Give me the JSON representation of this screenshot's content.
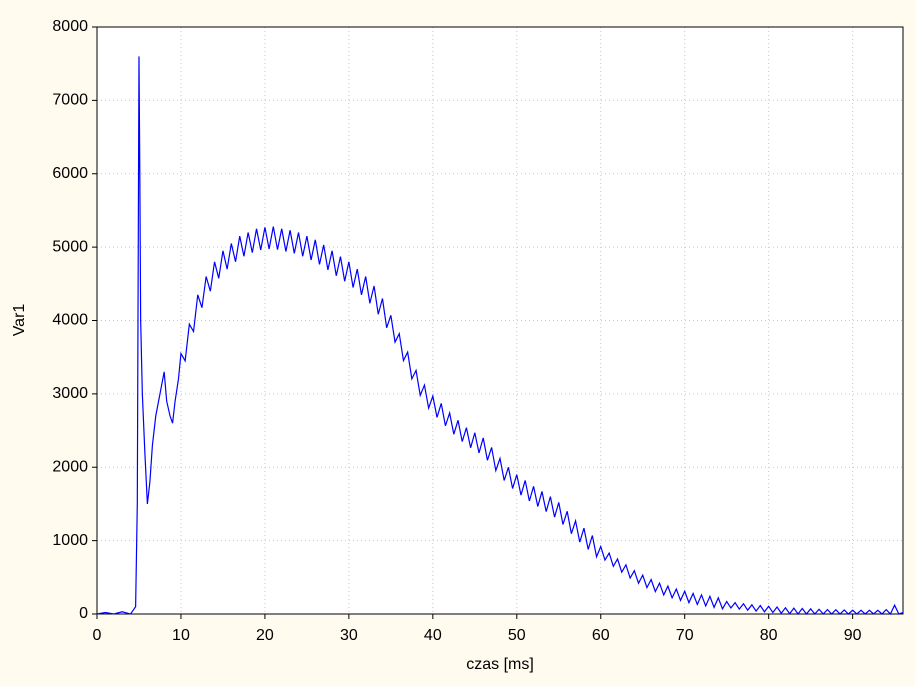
{
  "chart_data": {
    "type": "line",
    "xlabel": "czas [ms]",
    "ylabel": "Var1",
    "xlim": [
      0,
      96
    ],
    "ylim": [
      0,
      8000
    ],
    "xticks": [
      0,
      10,
      20,
      30,
      40,
      50,
      60,
      70,
      80,
      90
    ],
    "yticks": [
      0,
      1000,
      2000,
      3000,
      4000,
      5000,
      6000,
      7000,
      8000
    ],
    "grid": true,
    "x": [
      0,
      1,
      2,
      3,
      4,
      4.6,
      4.8,
      5.0,
      5.1,
      5.2,
      5.4,
      5.7,
      6.0,
      6.3,
      6.6,
      7,
      7.5,
      8,
      8.3,
      8.7,
      9,
      9.3,
      9.7,
      10,
      10.5,
      11,
      11.5,
      12,
      12.5,
      13,
      13.5,
      14,
      14.5,
      15,
      15.5,
      16,
      16.5,
      17,
      17.5,
      18,
      18.5,
      19,
      19.5,
      20,
      20.5,
      21,
      21.5,
      22,
      22.5,
      23,
      23.5,
      24,
      24.5,
      25,
      25.5,
      26,
      26.5,
      27,
      27.5,
      28,
      28.5,
      29,
      29.5,
      30,
      30.5,
      31,
      31.5,
      32,
      32.5,
      33,
      33.5,
      34,
      34.5,
      35,
      35.5,
      36,
      36.5,
      37,
      37.5,
      38,
      38.5,
      39,
      39.5,
      40,
      40.5,
      41,
      41.5,
      42,
      42.5,
      43,
      43.5,
      44,
      44.5,
      45,
      45.5,
      46,
      46.5,
      47,
      47.5,
      48,
      48.5,
      49,
      49.5,
      50,
      50.5,
      51,
      51.5,
      52,
      52.5,
      53,
      53.5,
      54,
      54.5,
      55,
      55.5,
      56,
      56.5,
      57,
      57.5,
      58,
      58.5,
      59,
      59.5,
      60,
      60.5,
      61,
      61.5,
      62,
      62.5,
      63,
      63.5,
      64,
      64.5,
      65,
      65.5,
      66,
      66.5,
      67,
      67.5,
      68,
      68.5,
      69,
      69.5,
      70,
      70.5,
      71,
      71.5,
      72,
      72.5,
      73,
      73.5,
      74,
      74.5,
      75,
      75.5,
      76,
      76.5,
      77,
      77.5,
      78,
      78.5,
      79,
      79.5,
      80,
      80.5,
      81,
      81.5,
      82,
      82.5,
      83,
      83.5,
      84,
      84.5,
      85,
      85.5,
      86,
      86.5,
      87,
      87.5,
      88,
      88.5,
      89,
      89.5,
      90,
      90.5,
      91,
      91.5,
      92,
      92.5,
      93,
      93.5,
      94,
      94.5,
      95,
      95.5,
      96
    ],
    "series": [
      {
        "name": "Var1",
        "color": "#0000ff",
        "values": [
          0,
          20,
          0,
          30,
          0,
          100,
          1500,
          7600,
          6000,
          4000,
          3000,
          2200,
          1500,
          1800,
          2300,
          2700,
          3000,
          3300,
          2900,
          2700,
          2600,
          2900,
          3200,
          3550,
          3450,
          3950,
          3850,
          4350,
          4175,
          4600,
          4400,
          4800,
          4575,
          4950,
          4700,
          5050,
          4800,
          5150,
          4875,
          5200,
          4925,
          5250,
          4960,
          5270,
          4975,
          5280,
          4965,
          5250,
          4940,
          5230,
          4915,
          5200,
          4875,
          5150,
          4825,
          5100,
          4765,
          5030,
          4690,
          4950,
          4610,
          4870,
          4535,
          4800,
          4450,
          4700,
          4350,
          4600,
          4235,
          4470,
          4085,
          4300,
          3900,
          4070,
          3705,
          3820,
          3455,
          3570,
          3205,
          3320,
          2980,
          3120,
          2805,
          2970,
          2680,
          2870,
          2565,
          2740,
          2450,
          2640,
          2350,
          2540,
          2265,
          2470,
          2195,
          2400,
          2095,
          2270,
          1955,
          2120,
          1820,
          2000,
          1710,
          1900,
          1620,
          1820,
          1540,
          1740,
          1465,
          1670,
          1395,
          1600,
          1320,
          1520,
          1220,
          1400,
          1095,
          1270,
          980,
          1170,
          880,
          1070,
          780,
          920,
          735,
          830,
          650,
          750,
          570,
          670,
          490,
          590,
          420,
          530,
          360,
          470,
          305,
          420,
          260,
          380,
          220,
          340,
          185,
          310,
          155,
          280,
          130,
          260,
          110,
          240,
          90,
          220,
          70,
          170,
          82,
          155,
          67,
          140,
          52,
          125,
          40,
          115,
          30,
          105,
          20,
          95,
          10,
          85,
          3,
          80,
          0,
          75,
          0,
          70,
          0,
          65,
          0,
          60,
          0,
          58,
          0,
          55,
          0,
          52,
          0,
          50,
          0,
          50,
          0,
          50,
          0,
          60,
          0,
          120,
          0,
          20
        ]
      }
    ]
  }
}
